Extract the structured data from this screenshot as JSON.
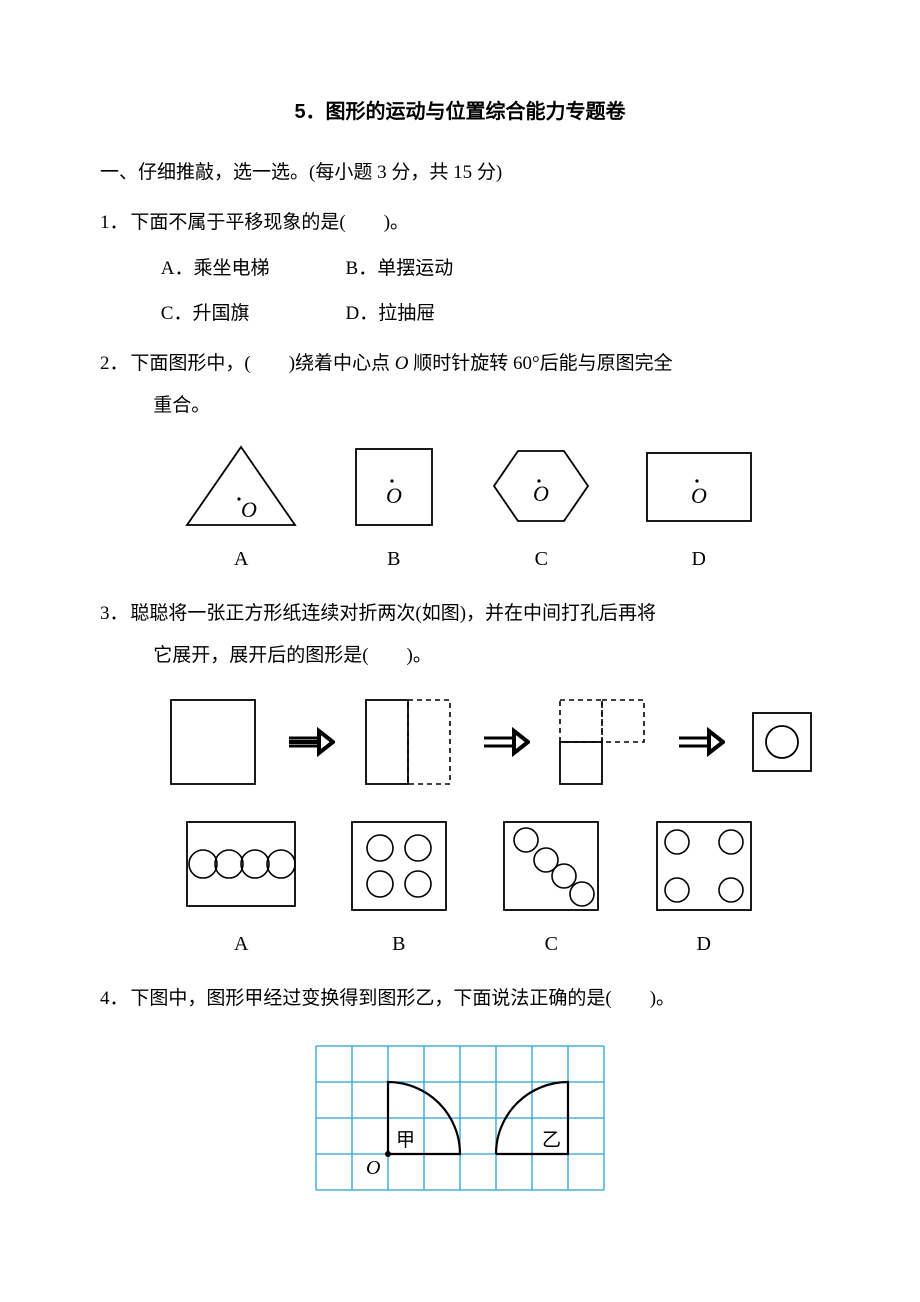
{
  "title": "5．图形的运动与位置综合能力专题卷",
  "section1": {
    "heading": "一、仔细推敲，选一选。(每小题 3 分，共 15 分)",
    "q1": {
      "num": "1．",
      "stem": "下面不属于平移现象的是(　　)。",
      "optA": "A．乘坐电梯",
      "optB": "B．单摆运动",
      "optC": "C．升国旗",
      "optD": "D．拉抽屉"
    },
    "q2": {
      "num": "2．",
      "stem_a": "下面图形中，(　　)绕着中心点 ",
      "stem_o": "O",
      "stem_b": " 顺时针旋转 60°后能与原图完全",
      "cont": "重合。",
      "labels": {
        "a": "A",
        "b": "B",
        "c": "C",
        "d": "D"
      },
      "o_label": "O",
      "shape_stroke": "#000000",
      "shape_stroke_width": 1.8
    },
    "q3": {
      "num": "3．",
      "stem": "聪聪将一张正方形纸连续对折两次(如图)，并在中间打孔后再将",
      "cont": "它展开，展开后的图形是(　　)。",
      "labels": {
        "a": "A",
        "b": "B",
        "c": "C",
        "d": "D"
      },
      "stroke": "#000000",
      "stroke_width": 1.8,
      "dash": "5,4"
    },
    "q4": {
      "num": "4．",
      "stem": "下图中，图形甲经过变换得到图形乙，下面说法正确的是(　　)。",
      "grid": {
        "cols": 8,
        "rows": 4,
        "cell": 36,
        "line_color": "#26a0da",
        "line_width": 1.3,
        "shape_stroke": "#000000",
        "shape_stroke_width": 2.2,
        "label_jia": "甲",
        "label_yi": "乙",
        "label_o": "O"
      }
    }
  }
}
